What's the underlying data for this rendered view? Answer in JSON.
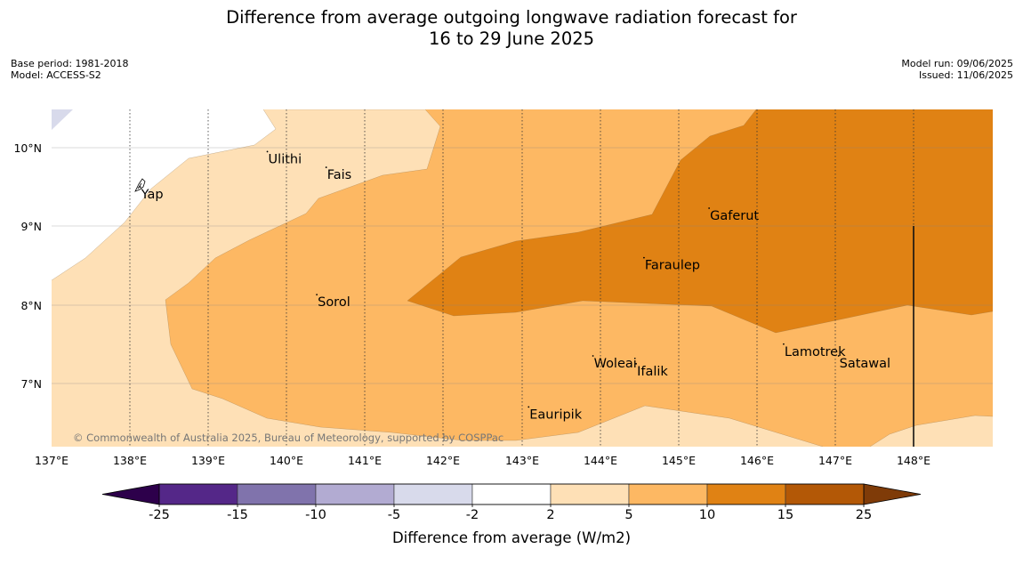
{
  "title": {
    "line1": "Difference from average outgoing longwave radiation forecast for",
    "line2": "16 to 29 June 2025"
  },
  "meta": {
    "base_period": "Base period: 1981-2018",
    "model": "Model: ACCESS-S2",
    "model_run": "Model run: 09/06/2025",
    "issued": "Issued: 11/06/2025"
  },
  "map": {
    "lon_labels": [
      "137°E",
      "138°E",
      "139°E",
      "140°E",
      "141°E",
      "142°E",
      "143°E",
      "144°E",
      "145°E",
      "146°E",
      "147°E",
      "148°E"
    ],
    "lat_labels": [
      "10°N",
      "9°N",
      "8°N",
      "7°N"
    ],
    "places": [
      {
        "name": "Ulithi",
        "lon": 139.75,
        "lat": 9.95
      },
      {
        "name": "Fais",
        "lon": 140.5,
        "lat": 9.75
      },
      {
        "name": "Yap",
        "lon": 138.13,
        "lat": 9.5
      },
      {
        "name": "Gaferut",
        "lon": 145.38,
        "lat": 9.23
      },
      {
        "name": "Faraulep",
        "lon": 144.55,
        "lat": 8.6
      },
      {
        "name": "Sorol",
        "lon": 140.38,
        "lat": 8.13
      },
      {
        "name": "Woleai",
        "lon": 143.9,
        "lat": 7.35
      },
      {
        "name": "Ifalik",
        "lon": 144.45,
        "lat": 7.25
      },
      {
        "name": "Lamotrek",
        "lon": 146.33,
        "lat": 7.5
      },
      {
        "name": "Satawal",
        "lon": 147.03,
        "lat": 7.35
      },
      {
        "name": "Eauripik",
        "lon": 143.08,
        "lat": 6.7
      }
    ],
    "copyright": "© Commonwealth of Australia 2025, Bureau of Meteorology, supported by COSPPac"
  },
  "colorbar": {
    "ticks": [
      "-25",
      "-15",
      "-10",
      "-5",
      "-2",
      "2",
      "5",
      "10",
      "15",
      "25"
    ],
    "colors": [
      "#542788",
      "#8073ac",
      "#b2abd2",
      "#d8daeb",
      "#ffffff",
      "#fee0b6",
      "#fdb863",
      "#e08214",
      "#b35806"
    ],
    "under_color": "#2d004b",
    "over_color": "#7f3b08",
    "label": "Difference from average (W/m2)"
  }
}
